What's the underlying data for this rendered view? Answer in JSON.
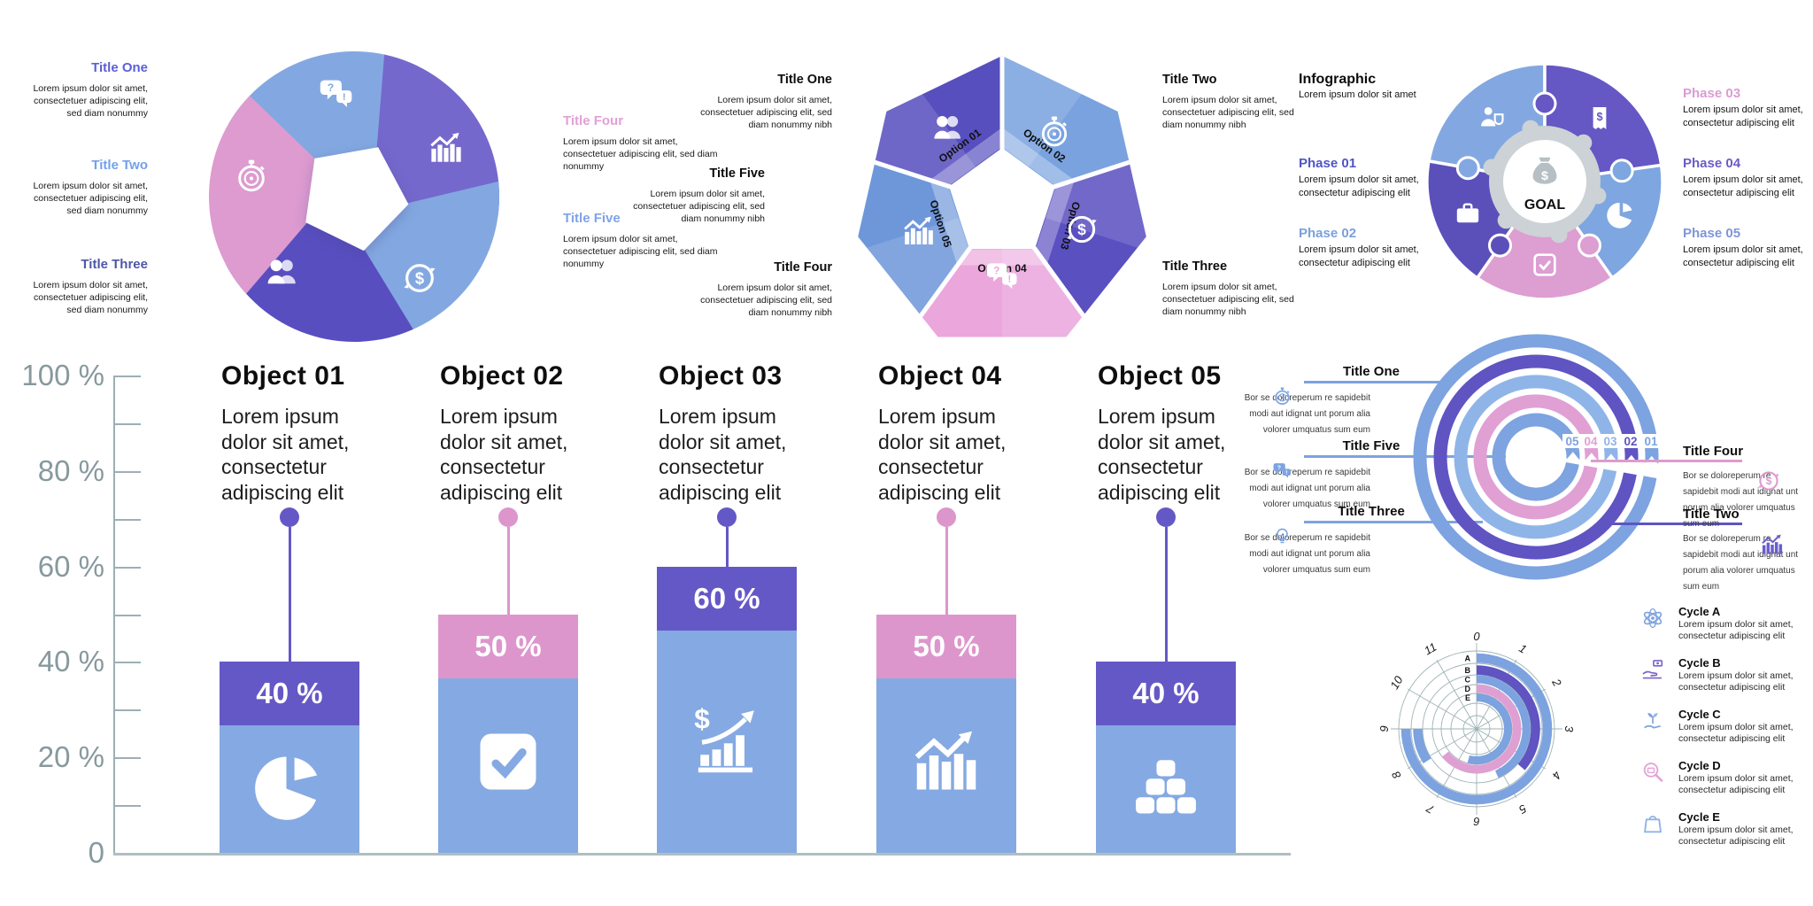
{
  "chart_data": [
    {
      "type": "bar",
      "title": "",
      "categories": [
        "Object 01",
        "Object 02",
        "Object 03",
        "Object 04",
        "Object 05"
      ],
      "values": [
        40,
        50,
        60,
        50,
        40
      ],
      "value_labels": [
        "40 %",
        "50 %",
        "60 %",
        "50 %",
        "40 %"
      ],
      "item_description": "Lorem ipsum dolor sit amet, consectetur adipiscing elit",
      "y_ticks": [
        "100 %",
        "80 %",
        "60 %",
        "40 %",
        "20 %",
        "0"
      ],
      "ylim": [
        0,
        100
      ],
      "grid": false,
      "cap_colors": [
        "#6458c6",
        "#dd96cc",
        "#6458c6",
        "#dd96cc",
        "#6458c6"
      ],
      "connector_colors": [
        "#6458c6",
        "#dd96cc",
        "#6458c6",
        "#dd96cc",
        "#6458c6"
      ],
      "body_color": "#85a9e2",
      "icons": [
        "pie",
        "check-square",
        "dollar-growth",
        "chart-peaks",
        "gold-ingots"
      ],
      "axis_color": "#9cb0b4",
      "tick_label_color": "#87999e"
    },
    {
      "type": "bar",
      "subtype": "radial-progress-rings",
      "rings": [
        {
          "label": "01",
          "r": 131,
          "color": "#7da3e0"
        },
        {
          "label": "02",
          "r": 108,
          "color": "#5f54c2"
        },
        {
          "label": "03",
          "r": 85,
          "color": "#8fb5e8"
        },
        {
          "label": "04",
          "r": 63,
          "color": "#e0a0d4"
        },
        {
          "label": "05",
          "r": 42,
          "color": "#7da3e0"
        }
      ]
    },
    {
      "type": "bar",
      "subtype": "polar-clock",
      "clock_ticks": [
        "0",
        "1",
        "2",
        "3",
        "4",
        "5",
        "6",
        "7",
        "8",
        "9",
        "10",
        "11"
      ],
      "ring_labels": [
        "A",
        "B",
        "C",
        "D",
        "E"
      ],
      "series": [
        {
          "name": "A",
          "ring": "A",
          "start": 0,
          "end": 9,
          "color": "#7ca2df"
        },
        {
          "name": "B",
          "ring": "B",
          "start": 0,
          "end": 4.35,
          "color": "#5f54c2"
        },
        {
          "name": "C",
          "ring": "C",
          "start": 0,
          "end": 5.2,
          "color": "#7ca2df"
        },
        {
          "name": "D",
          "ring": "D",
          "start": 0,
          "end": 7.7,
          "color": "#df9fd3"
        },
        {
          "name": "E",
          "ring": "E",
          "start": 0,
          "end": 6.5,
          "color": "#7ca2df"
        },
        {
          "name": "B-tail",
          "ring": "B",
          "start": 7.9,
          "end": 9,
          "color": "#7ca2df"
        }
      ],
      "grid": true,
      "legend_position": "right"
    }
  ],
  "pinwheel": {
    "titles": [
      {
        "label": "Title One",
        "color": "#5b5fd8",
        "body": "Lorem ipsum dolor sit amet, consectetuer adipiscing elit, sed diam nonummy"
      },
      {
        "label": "Title Two",
        "color": "#74a0ea",
        "body": "Lorem ipsum dolor sit amet, consectetuer adipiscing elit, sed diam nonummy"
      },
      {
        "label": "Title Three",
        "color": "#4d57a8",
        "body": "Lorem ipsum dolor sit amet, consectetuer adipiscing elit, sed diam nonummy"
      }
    ],
    "right_titles": [
      {
        "label": "Title Four",
        "color": "#e2a0d6",
        "body": "Lorem ipsum dolor sit amet, consectetuer adipiscing elit, sed diam nonummy"
      },
      {
        "label": "Title Five",
        "color": "#7fa3e8",
        "body": "Lorem ipsum dolor sit amet, consectetuer adipiscing elit, sed diam nonummy"
      }
    ],
    "blades": [
      {
        "icon": "speech",
        "color": "#83a8e1"
      },
      {
        "icon": "chart-peaks",
        "color": "#7568cd"
      },
      {
        "icon": "dollar-cycle",
        "color": "#83a8e1"
      },
      {
        "icon": "people",
        "color": "#584ec0"
      },
      {
        "icon": "stopwatch",
        "color": "#dd9bd0"
      }
    ]
  },
  "heptagon": {
    "left_titles": [
      {
        "label": "Title One",
        "body": "Lorem ipsum dolor sit amet, consectetuer adipiscing elit, sed diam nonummy nibh"
      },
      {
        "label": "Title Five",
        "body": "Lorem ipsum dolor sit amet, consectetuer adipiscing elit, sed diam nonummy nibh"
      },
      {
        "label": "Title Four",
        "body": "Lorem ipsum dolor sit amet, consectetuer adipiscing elit, sed diam nonummy nibh"
      }
    ],
    "right_titles": [
      {
        "label": "Title Two",
        "body": "Lorem ipsum dolor sit amet, consectetuer adipiscing elit, sed diam nonummy nibh"
      },
      {
        "label": "Title Three",
        "body": "Lorem ipsum dolor sit amet, consectetuer adipiscing elit, sed diam nonummy nibh"
      }
    ],
    "options": [
      {
        "label": "Option 01",
        "color": "#574fbe",
        "icon": "people"
      },
      {
        "label": "Option 02",
        "color": "#79a2df",
        "icon": "stopwatch"
      },
      {
        "label": "Option 03",
        "color": "#5b50c0",
        "icon": "dollar-cycle"
      },
      {
        "label": "Option 04",
        "color": "#eba6dc",
        "icon": "speech"
      },
      {
        "label": "Option 05",
        "color": "#6e97da",
        "icon": "chart-peaks"
      }
    ]
  },
  "puzzle": {
    "heading": {
      "title": "Infographic",
      "subtitle": "Lorem ipsum dolor sit amet"
    },
    "goal": "GOAL",
    "phases": [
      {
        "label": "Phase 01",
        "color": "#4f55c7",
        "body": "Lorem ipsum dolor sit amet, consectetur adipiscing elit"
      },
      {
        "label": "Phase 02",
        "color": "#7aa0dd",
        "body": "Lorem ipsum dolor sit amet, consectetur adipiscing elit"
      },
      {
        "label": "Phase 03",
        "color": "#dc9bd4",
        "body": "Lorem ipsum dolor sit amet, consectetur adipiscing elit"
      },
      {
        "label": "Phase 04",
        "color": "#6a5cc8",
        "body": "Lorem ipsum dolor sit amet, consectetur adipiscing elit"
      },
      {
        "label": "Phase 05",
        "color": "#7e96d9",
        "body": "Lorem ipsum dolor sit amet, consectetur adipiscing elit"
      }
    ],
    "pieces": [
      {
        "color": "#83a8e1",
        "icon": "person-shield"
      },
      {
        "color": "#6557c4",
        "icon": "receipt"
      },
      {
        "color": "#7ea6e0",
        "icon": "pie"
      },
      {
        "color": "#dd9ed2",
        "icon": "check"
      },
      {
        "color": "#5b50ba",
        "icon": "briefcase"
      }
    ]
  },
  "radial": {
    "left_items": [
      {
        "title": "Title One",
        "icon": "stopwatch",
        "body": "Bor se doloreperum re sapidebit modi aut idignat unt porum alia volorer umquatus sum eum"
      },
      {
        "title": "Title Five",
        "icon": "speech",
        "body": "Bor se doloreperum re sapidebit modi aut idignat unt porum alia volorer umquatus sum eum"
      },
      {
        "title": "Title Three",
        "icon": "bulb",
        "body": "Bor se doloreperum re sapidebit modi aut idignat unt porum alia volorer umquatus sum eum"
      }
    ],
    "right_items": [
      {
        "title": "Title Four",
        "icon": "dollar-cycle",
        "line_color": "#dd9bd0",
        "body": "Bor se doloreperum re sapidebit modi aut idignat unt porum alia volorer umquatus sum eum"
      },
      {
        "title": "Title Two",
        "icon": "chart-peaks",
        "line_color": "#5f54c2",
        "body": "Bor se doloreperum re sapidebit modi aut idignat unt porum alia volorer umquatus sum eum"
      }
    ]
  },
  "polar": {
    "legend": [
      {
        "title": "Cycle A",
        "icon": "atom",
        "color": "#7ca2df",
        "body": "Lorem ipsum dolor sit amet, consectetur adipiscing elit"
      },
      {
        "title": "Cycle B",
        "icon": "hand-money",
        "color": "#7a63c9",
        "body": "Lorem ipsum dolor sit amet, consectetur adipiscing elit"
      },
      {
        "title": "Cycle C",
        "icon": "hand-sprout",
        "color": "#7ca2df",
        "body": "Lorem ipsum dolor sit amet, consectetur adipiscing elit"
      },
      {
        "title": "Cycle D",
        "icon": "magnifier-case",
        "color": "#e3a4d6",
        "body": "Lorem ipsum dolor sit amet, consectetur adipiscing elit"
      },
      {
        "title": "Cycle E",
        "icon": "bag",
        "color": "#8fb3e6",
        "body": "Lorem ipsum dolor sit amet, consectetur adipiscing elit"
      }
    ]
  }
}
